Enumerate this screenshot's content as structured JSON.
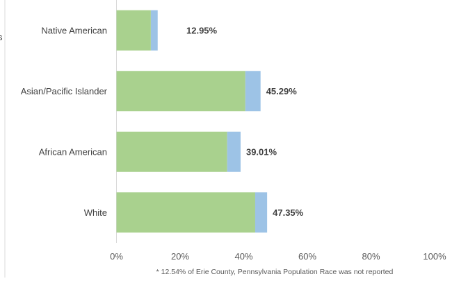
{
  "chart_data": {
    "type": "bar",
    "orientation": "horizontal",
    "stacked": true,
    "categories": [
      "Native American",
      "Asian/Pacific Islander",
      "African American",
      "White"
    ],
    "series": [
      {
        "values": [
          10.8,
          40.5,
          34.8,
          43.6
        ],
        "color": "#a9d18e"
      },
      {
        "values": [
          2.15,
          4.79,
          4.21,
          3.75
        ],
        "color": "#9dc3e6"
      }
    ],
    "data_labels": [
      "12.95%",
      "45.29%",
      "39.01%",
      "47.35%"
    ],
    "xlim": [
      0,
      100
    ],
    "x_ticks": [
      0,
      20,
      40,
      60,
      80,
      100
    ],
    "x_tick_labels": [
      "0%",
      "20%",
      "40%",
      "60%",
      "80%",
      "100%"
    ],
    "grid": false,
    "footnote": "* 12.54% of Erie County, Pennsylvania Population Race was not reported",
    "edge_glyph": "s"
  }
}
